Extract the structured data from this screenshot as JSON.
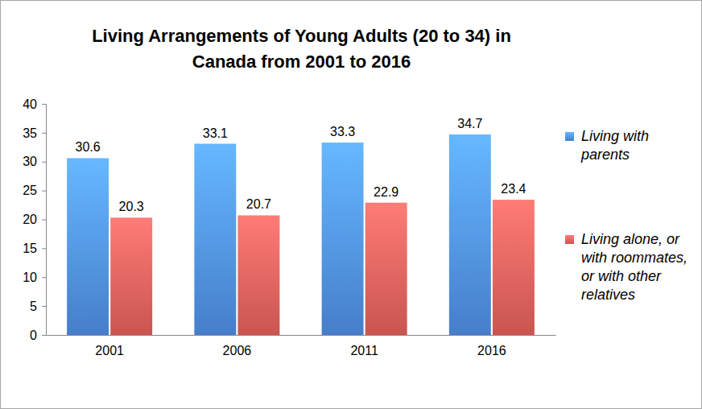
{
  "chart_data": {
    "type": "bar",
    "title": "Living Arrangements of Young Adults (20 to 34) in Canada from 2001 to 2016",
    "categories": [
      "2001",
      "2006",
      "2011",
      "2016"
    ],
    "series": [
      {
        "name": "Living with parents",
        "color": "#4f8fe6",
        "values": [
          30.6,
          33.1,
          33.3,
          34.7
        ]
      },
      {
        "name": "Living alone, or with roommates, or with other relatives",
        "color": "#e4605c",
        "values": [
          20.3,
          20.7,
          22.9,
          23.4
        ]
      }
    ],
    "ylim": [
      0,
      40
    ],
    "yticks": [
      0,
      5,
      10,
      15,
      20,
      25,
      30,
      35,
      40
    ],
    "grid": false,
    "legend": "right",
    "data_labels": true
  }
}
